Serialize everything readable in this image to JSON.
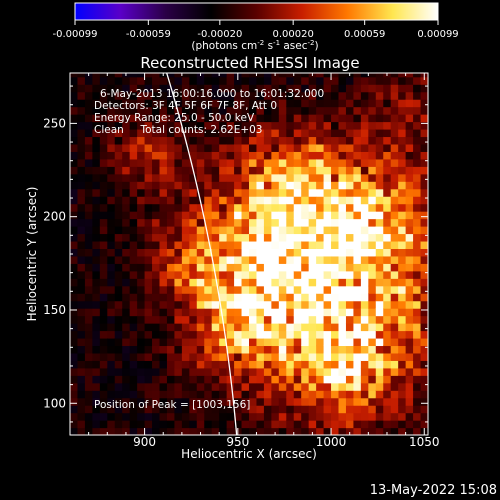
{
  "chart_data": {
    "type": "heatmap",
    "title": "Reconstructed RHESSI Image",
    "xlabel": "Heliocentric X (arcsec)",
    "ylabel": "Heliocentric Y (arcsec)",
    "xlim": [
      860,
      1052
    ],
    "ylim": [
      83,
      277
    ],
    "x_ticks": [
      900,
      950,
      1000,
      1050
    ],
    "y_ticks": [
      100,
      150,
      200,
      250
    ],
    "colorbar": {
      "range": [
        -0.00099,
        0.00099
      ],
      "ticks": [
        "-0.00099",
        "-0.00059",
        "-0.00020",
        "0.00020",
        "0.00059",
        "0.00099"
      ],
      "label": "(photons cm",
      "label_sup1": "-2",
      "label_mid": " s",
      "label_sup2": "-1",
      "label_mid2": " asec",
      "label_sup3": "-2",
      "label_end": ")",
      "colors": [
        "#0000ff",
        "#5a00c8",
        "#2a0046",
        "#000000",
        "#5a0000",
        "#c81e00",
        "#ff7800",
        "#ffe650",
        "#ffffff"
      ]
    },
    "annotations": [
      "6-May-2013 16:00:16.000  to 16:01:32.000",
      "Detectors: 3F 4F 5F 6F 7F 8F, Att 0",
      "Energy Range: 25.0 - 50.0 keV",
      "Clean     Total counts: 2.62E+03"
    ],
    "peak_label": "Position of Peak = [1003,156]",
    "peak": [
      1003,
      156
    ],
    "limb": {
      "visible": true,
      "color": "#ffffff"
    },
    "sources": [
      {
        "x": 1003,
        "y": 156,
        "amp": 1.0,
        "sigma": 38
      },
      {
        "x": 985,
        "y": 215,
        "amp": 0.55,
        "sigma": 22
      },
      {
        "x": 960,
        "y": 190,
        "amp": 0.5,
        "sigma": 28
      },
      {
        "x": 1030,
        "y": 200,
        "amp": 0.45,
        "sigma": 20
      },
      {
        "x": 950,
        "y": 145,
        "amp": 0.45,
        "sigma": 20
      },
      {
        "x": 1010,
        "y": 115,
        "amp": 0.4,
        "sigma": 16
      },
      {
        "x": 900,
        "y": 232,
        "amp": 0.35,
        "sigma": 14
      },
      {
        "x": 920,
        "y": 175,
        "amp": 0.3,
        "sigma": 14
      },
      {
        "x": 1040,
        "y": 255,
        "amp": 0.3,
        "sigma": 16
      }
    ]
  },
  "footer": {
    "timestamp": "13-May-2022 15:08"
  }
}
